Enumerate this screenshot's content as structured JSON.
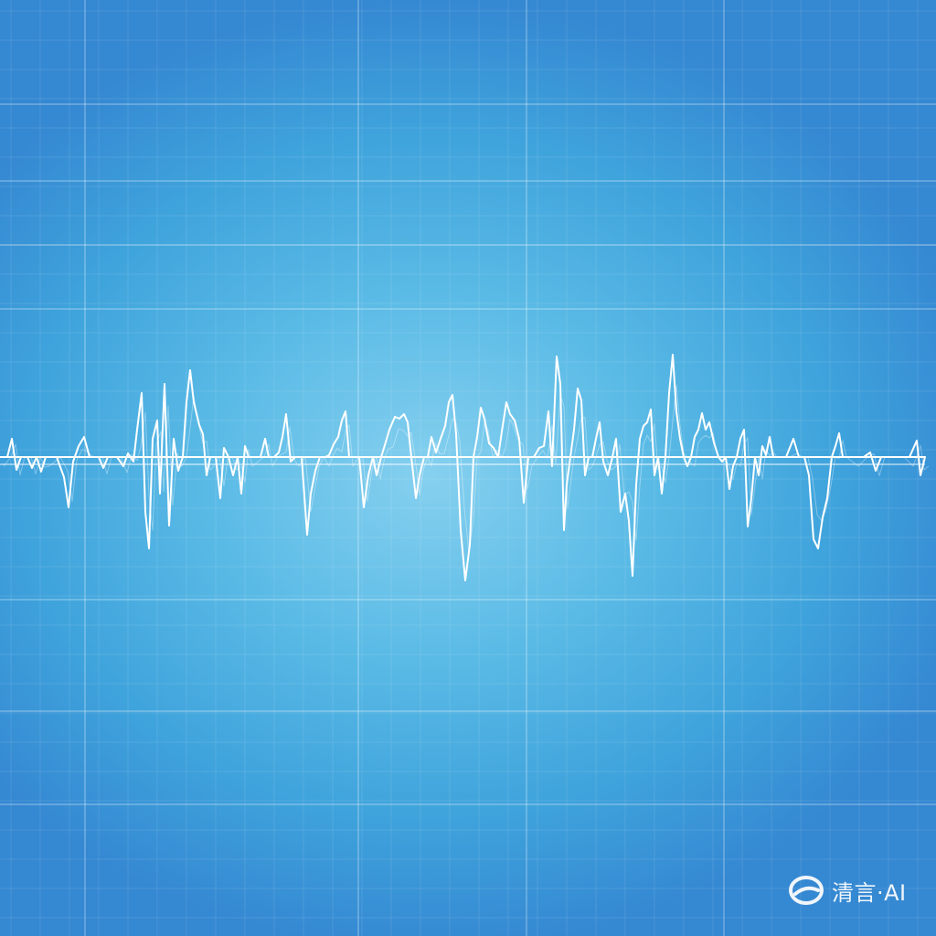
{
  "image": {
    "background_colors": {
      "center": "#86d0ef",
      "mid": "#5bbbe6",
      "edge": "#3588d2"
    },
    "line_color": "#ffffff"
  },
  "watermark": {
    "text": "清言·AI",
    "icon": "qingyan-logo-icon"
  }
}
